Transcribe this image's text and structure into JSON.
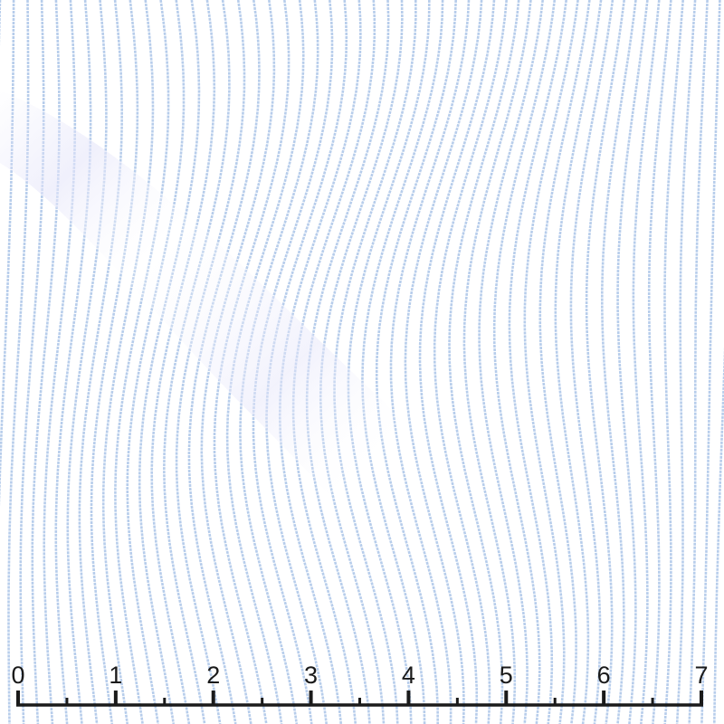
{
  "swatch": {
    "stripe_color": "#b7cdeb",
    "background_color": "#ffffff",
    "fold_shadow_color": "#e6e6fa"
  },
  "ruler": {
    "labels": [
      "0",
      "1",
      "2",
      "3",
      "4",
      "5",
      "6",
      "7"
    ],
    "color": "#1a1a1a"
  }
}
